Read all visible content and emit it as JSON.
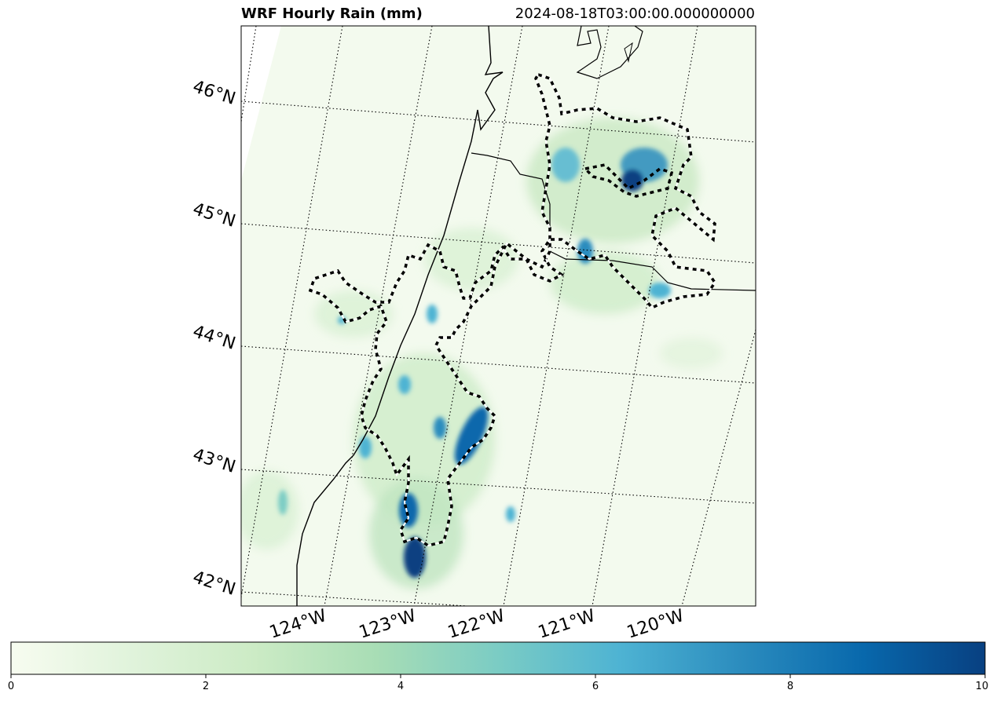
{
  "title": "WRF Hourly Rain (mm)",
  "timestamp": "2024-08-18T03:00:00.000000000",
  "lat_labels": [
    "46°N",
    "45°N",
    "44°N",
    "43°N",
    "42°N"
  ],
  "lon_labels": [
    "124°W",
    "123°W",
    "122°W",
    "121°W",
    "120°W"
  ],
  "colorbar": {
    "min": 0,
    "max": 10,
    "ticks": [
      "0",
      "2",
      "4",
      "6",
      "8",
      "10"
    ],
    "colormap": "GnBu",
    "colors": [
      "#f7fcf0",
      "#e0f3db",
      "#ccebc5",
      "#a8ddb5",
      "#7bccc4",
      "#4eb3d3",
      "#2b8cbe",
      "#0868ac",
      "#084081"
    ]
  },
  "map": {
    "background": "#f3faee",
    "gridline_style": "dotted",
    "features": [
      "coastline",
      "state-borders",
      "dashed-region-outline"
    ]
  }
}
